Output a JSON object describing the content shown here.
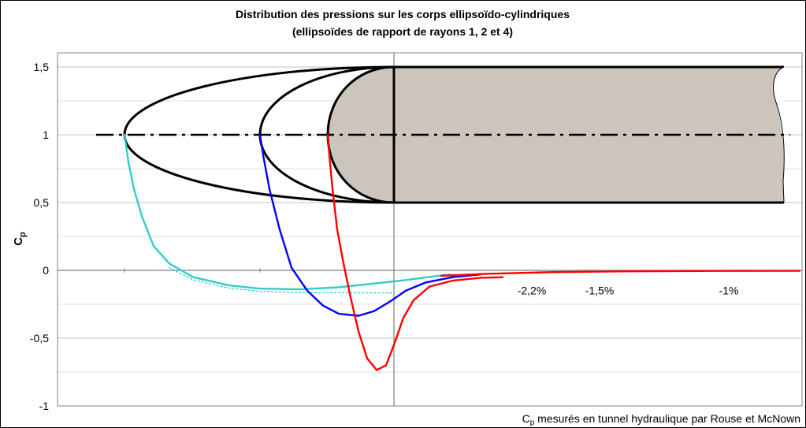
{
  "chart_data": {
    "type": "line",
    "title": "Distribution des pressions sur les corps ellipsoïdo-cylindriques",
    "subtitle": "(ellipsoïdes de rapport de rayons 1, 2 et 4)",
    "ylabel": "C",
    "ylabel_sub": "p",
    "ylim": [
      -1,
      1.5
    ],
    "yticks": [
      {
        "v": 1.5,
        "label": "1,5"
      },
      {
        "v": 1,
        "label": "1"
      },
      {
        "v": 0.5,
        "label": "0,5"
      },
      {
        "v": 0,
        "label": "0"
      },
      {
        "v": -0.5,
        "label": "-0,5"
      },
      {
        "v": -1,
        "label": "-1"
      }
    ],
    "grid": true,
    "annotations": [
      {
        "text": "-2,2%",
        "x": 675,
        "y": -0.2
      },
      {
        "text": "-1,5%",
        "x": 761,
        "y": -0.2
      },
      {
        "text": "-1%",
        "x": 925,
        "y": -0.2
      }
    ],
    "footnote_sub": "p",
    "footnote": " mesurés en tunnel hydraulique par Rouse et McNown",
    "colors": {
      "ratio1": "#ff0000",
      "ratio2": "#0000ff",
      "ratio4": "#00cccc",
      "body": "#ccc5bb"
    },
    "series": [
      {
        "color": "#33cccc",
        "points": [
          [
            158,
            1.0
          ],
          [
            163,
            0.8
          ],
          [
            170,
            0.6
          ],
          [
            180,
            0.4
          ],
          [
            195,
            0.18
          ],
          [
            215,
            0.05
          ],
          [
            245,
            -0.05
          ],
          [
            290,
            -0.11
          ],
          [
            330,
            -0.135
          ],
          [
            380,
            -0.14
          ],
          [
            430,
            -0.125
          ],
          [
            470,
            -0.1
          ],
          [
            510,
            -0.075
          ],
          [
            550,
            -0.045
          ],
          [
            572,
            -0.03
          ]
        ]
      },
      {
        "color": "#33cccc",
        "style": "dotted",
        "points": [
          [
            215,
            0.02
          ],
          [
            245,
            -0.07
          ],
          [
            290,
            -0.13
          ],
          [
            330,
            -0.155
          ],
          [
            380,
            -0.163
          ],
          [
            430,
            -0.165
          ],
          [
            470,
            -0.166
          ],
          [
            500,
            -0.167
          ]
        ]
      },
      {
        "color": "#0000ff",
        "points": [
          [
            330,
            1.0
          ],
          [
            334,
            0.85
          ],
          [
            342,
            0.6
          ],
          [
            355,
            0.3
          ],
          [
            370,
            0.02
          ],
          [
            390,
            -0.15
          ],
          [
            410,
            -0.26
          ],
          [
            430,
            -0.32
          ],
          [
            455,
            -0.335
          ],
          [
            475,
            -0.3
          ],
          [
            495,
            -0.23
          ],
          [
            515,
            -0.15
          ],
          [
            540,
            -0.09
          ],
          [
            575,
            -0.05
          ],
          [
            610,
            -0.03
          ]
        ]
      },
      {
        "color": "#ff0000",
        "points": [
          [
            416,
            1.0
          ],
          [
            418,
            0.85
          ],
          [
            422,
            0.6
          ],
          [
            428,
            0.3
          ],
          [
            436,
            0.05
          ],
          [
            445,
            -0.2
          ],
          [
            455,
            -0.45
          ],
          [
            466,
            -0.65
          ],
          [
            478,
            -0.735
          ],
          [
            490,
            -0.7
          ],
          [
            500,
            -0.55
          ],
          [
            512,
            -0.35
          ],
          [
            525,
            -0.22
          ],
          [
            545,
            -0.12
          ],
          [
            575,
            -0.075
          ],
          [
            610,
            -0.055
          ],
          [
            638,
            -0.05
          ]
        ]
      },
      {
        "color": "#ff0000",
        "points": [
          [
            560,
            -0.04
          ],
          [
            620,
            -0.025
          ],
          [
            700,
            -0.013
          ],
          [
            800,
            -0.007
          ],
          [
            900,
            -0.004
          ],
          [
            1015,
            -0.003
          ]
        ]
      }
    ]
  }
}
